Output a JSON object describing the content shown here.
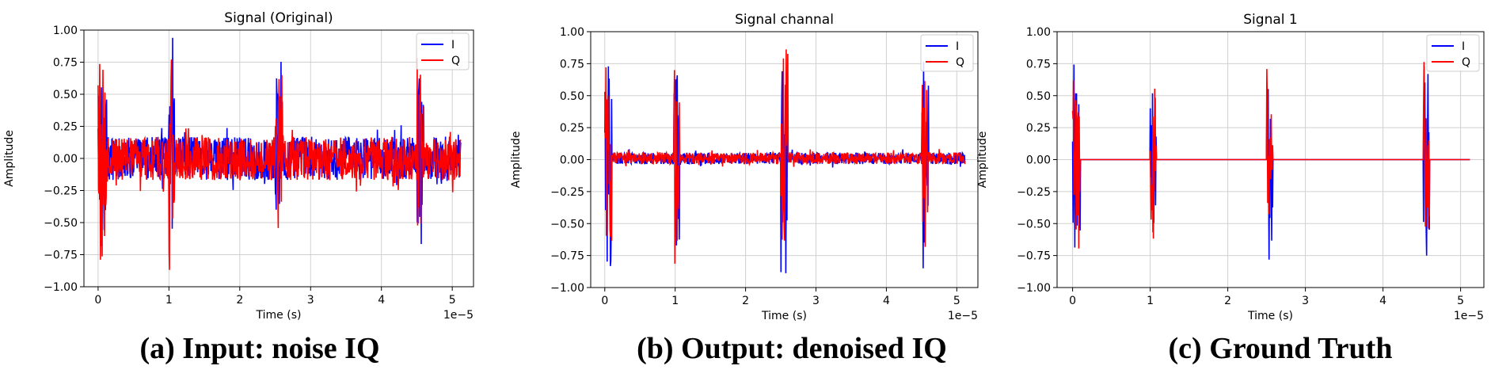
{
  "colors": {
    "I": "#0000ff",
    "Q": "#ff0000",
    "grid": "#d0d0d0"
  },
  "captions": [
    "(a) Input: noise IQ",
    "(b) Output: denoised IQ",
    "(c) Ground Truth"
  ],
  "chart_data": [
    {
      "type": "line",
      "title": "Signal (Original)",
      "xlabel": "Time (s)",
      "ylabel": "Amplitude",
      "x_multiplier_label": "1e−5",
      "xlim": [
        -0.2,
        5.3
      ],
      "ylim": [
        -1.0,
        1.0
      ],
      "x_ticks": [
        0,
        1,
        2,
        3,
        4,
        5
      ],
      "x_tick_labels": [
        "0",
        "1",
        "2",
        "3",
        "4",
        "5"
      ],
      "y_ticks": [
        -1.0,
        -0.75,
        -0.5,
        -0.25,
        0.0,
        0.25,
        0.5,
        0.75,
        1.0
      ],
      "y_tick_labels": [
        "−1.00",
        "−0.75",
        "−0.50",
        "−0.25",
        "0.00",
        "0.25",
        "0.50",
        "0.75",
        "1.00"
      ],
      "grid": true,
      "legend_position": "upper right",
      "x_range_data": [
        0,
        5.12
      ],
      "baseline_noise": 0.17,
      "bursts": [
        {
          "start": 0.0,
          "end": 0.12,
          "amplitude": 0.95
        },
        {
          "start": 0.99,
          "end": 1.08,
          "amplitude": 1.0
        },
        {
          "start": 2.5,
          "end": 2.6,
          "amplitude": 0.88
        },
        {
          "start": 4.5,
          "end": 4.6,
          "amplitude": 0.85
        }
      ],
      "series": [
        {
          "name": "I"
        },
        {
          "name": "Q"
        }
      ]
    },
    {
      "type": "line",
      "title": "Signal channal",
      "xlabel": "Time (s)",
      "ylabel": "Amplitude",
      "x_multiplier_label": "1e−5",
      "xlim": [
        -0.2,
        5.3
      ],
      "ylim": [
        -1.0,
        1.0
      ],
      "x_ticks": [
        0,
        1,
        2,
        3,
        4,
        5
      ],
      "x_tick_labels": [
        "0",
        "1",
        "2",
        "3",
        "4",
        "5"
      ],
      "y_ticks": [
        -1.0,
        -0.75,
        -0.5,
        -0.25,
        0.0,
        0.25,
        0.5,
        0.75,
        1.0
      ],
      "y_tick_labels": [
        "−1.00",
        "−0.75",
        "−0.50",
        "−0.25",
        "0.00",
        "0.25",
        "0.50",
        "0.75",
        "1.00"
      ],
      "grid": true,
      "legend_position": "upper right",
      "x_range_data": [
        0,
        5.12
      ],
      "baseline_noise": 0.045,
      "bursts": [
        {
          "start": 0.0,
          "end": 0.1,
          "amplitude": 1.0
        },
        {
          "start": 0.98,
          "end": 1.06,
          "amplitude": 1.0
        },
        {
          "start": 2.5,
          "end": 2.6,
          "amplitude": 1.0
        },
        {
          "start": 4.5,
          "end": 4.6,
          "amplitude": 1.0
        }
      ],
      "series": [
        {
          "name": "I"
        },
        {
          "name": "Q"
        }
      ]
    },
    {
      "type": "line",
      "title": "Signal 1",
      "xlabel": "Time (s)",
      "ylabel": "Amplitude",
      "x_multiplier_label": "1e−5",
      "xlim": [
        -0.2,
        5.3
      ],
      "ylim": [
        -1.0,
        1.0
      ],
      "x_ticks": [
        0,
        1,
        2,
        3,
        4,
        5
      ],
      "x_tick_labels": [
        "0",
        "1",
        "2",
        "3",
        "4",
        "5"
      ],
      "y_ticks": [
        -1.0,
        -0.75,
        -0.5,
        -0.25,
        0.0,
        0.25,
        0.5,
        0.75,
        1.0
      ],
      "y_tick_labels": [
        "−1.00",
        "−0.75",
        "−0.50",
        "−0.25",
        "0.00",
        "0.25",
        "0.50",
        "0.75",
        "1.00"
      ],
      "grid": true,
      "legend_position": "upper right",
      "x_range_data": [
        0,
        5.12
      ],
      "baseline_noise": 0.0,
      "bursts": [
        {
          "start": 0.0,
          "end": 0.1,
          "amplitude": 0.82
        },
        {
          "start": 1.0,
          "end": 1.08,
          "amplitude": 0.8
        },
        {
          "start": 2.5,
          "end": 2.58,
          "amplitude": 0.82
        },
        {
          "start": 4.52,
          "end": 4.6,
          "amplitude": 0.82
        }
      ],
      "series": [
        {
          "name": "I"
        },
        {
          "name": "Q"
        }
      ]
    }
  ]
}
